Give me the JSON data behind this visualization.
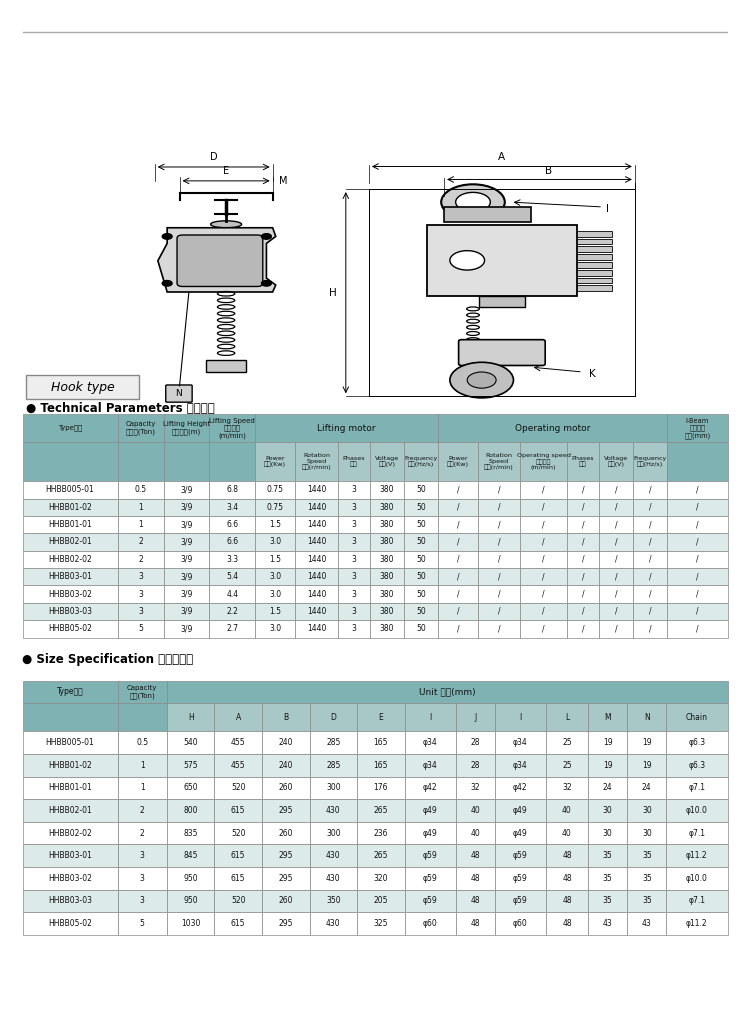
{
  "page_bg": "#ffffff",
  "hook_type_label": "Hook type",
  "tech_params_label": "● Technical Parameters 技术参数",
  "size_spec_label": "● Size Specification 尺寸规格表",
  "table1_data": [
    [
      "HHBB005-01",
      "0.5",
      "3/9",
      "6.8",
      "0.75",
      "1440",
      "3",
      "380",
      "50",
      "/",
      "/",
      "/",
      "/",
      "/",
      "/",
      "/"
    ],
    [
      "HHBB01-02",
      "1",
      "3/9",
      "3.4",
      "0.75",
      "1440",
      "3",
      "380",
      "50",
      "/",
      "/",
      "/",
      "/",
      "/",
      "/",
      "/"
    ],
    [
      "HHBB01-01",
      "1",
      "3/9",
      "6.6",
      "1.5",
      "1440",
      "3",
      "380",
      "50",
      "/",
      "/",
      "/",
      "/",
      "/",
      "/",
      "/"
    ],
    [
      "HHBB02-01",
      "2",
      "3/9",
      "6.6",
      "3.0",
      "1440",
      "3",
      "380",
      "50",
      "/",
      "/",
      "/",
      "/",
      "/",
      "/",
      "/"
    ],
    [
      "HHBB02-02",
      "2",
      "3/9",
      "3.3",
      "1.5",
      "1440",
      "3",
      "380",
      "50",
      "/",
      "/",
      "/",
      "/",
      "/",
      "/",
      "/"
    ],
    [
      "HHBB03-01",
      "3",
      "3/9",
      "5.4",
      "3.0",
      "1440",
      "3",
      "380",
      "50",
      "/",
      "/",
      "/",
      "/",
      "/",
      "/",
      "/"
    ],
    [
      "HHBB03-02",
      "3",
      "3/9",
      "4.4",
      "3.0",
      "1440",
      "3",
      "380",
      "50",
      "/",
      "/",
      "/",
      "/",
      "/",
      "/",
      "/"
    ],
    [
      "HHBB03-03",
      "3",
      "3/9",
      "2.2",
      "1.5",
      "1440",
      "3",
      "380",
      "50",
      "/",
      "/",
      "/",
      "/",
      "/",
      "/",
      "/"
    ],
    [
      "HHBB05-02",
      "5",
      "3/9",
      "2.7",
      "3.0",
      "1440",
      "3",
      "380",
      "50",
      "/",
      "/",
      "/",
      "/",
      "/",
      "/",
      "/"
    ]
  ],
  "table1_highlight_rows": [
    1,
    3,
    5,
    7
  ],
  "table2_unit_header": "Unit 单位(mm)",
  "table2_data": [
    [
      "HHBB005-01",
      "0.5",
      "540",
      "455",
      "240",
      "285",
      "165",
      "φ34",
      "28",
      "φ34",
      "25",
      "19",
      "19",
      "φ6.3"
    ],
    [
      "HHBB01-02",
      "1",
      "575",
      "455",
      "240",
      "285",
      "165",
      "φ34",
      "28",
      "φ34",
      "25",
      "19",
      "19",
      "φ6.3"
    ],
    [
      "HHBB01-01",
      "1",
      "650",
      "520",
      "260",
      "300",
      "176",
      "φ42",
      "32",
      "φ42",
      "32",
      "24",
      "24",
      "φ7.1"
    ],
    [
      "HHBB02-01",
      "2",
      "800",
      "615",
      "295",
      "430",
      "265",
      "φ49",
      "40",
      "φ49",
      "40",
      "30",
      "30",
      "φ10.0"
    ],
    [
      "HHBB02-02",
      "2",
      "835",
      "520",
      "260",
      "300",
      "236",
      "φ49",
      "40",
      "φ49",
      "40",
      "30",
      "30",
      "φ7.1"
    ],
    [
      "HHBB03-01",
      "3",
      "845",
      "615",
      "295",
      "430",
      "265",
      "φ59",
      "48",
      "φ59",
      "48",
      "35",
      "35",
      "φ11.2"
    ],
    [
      "HHBB03-02",
      "3",
      "950",
      "615",
      "295",
      "430",
      "320",
      "φ59",
      "48",
      "φ59",
      "48",
      "35",
      "35",
      "φ10.0"
    ],
    [
      "HHBB03-03",
      "3",
      "950",
      "520",
      "260",
      "350",
      "205",
      "φ59",
      "48",
      "φ59",
      "48",
      "35",
      "35",
      "φ7.1"
    ],
    [
      "HHBB05-02",
      "5",
      "1030",
      "615",
      "295",
      "430",
      "325",
      "φ60",
      "48",
      "φ60",
      "48",
      "43",
      "43",
      "φ11.2"
    ]
  ],
  "table2_highlight_rows": [
    1,
    3,
    5,
    7
  ],
  "header_bg": "#7fb3b3",
  "subheader_bg": "#a8c8c8",
  "row_bg_normal": "#ffffff",
  "row_bg_highlight": "#ddeaea",
  "border_color": "#888888",
  "text_color": "#222222"
}
